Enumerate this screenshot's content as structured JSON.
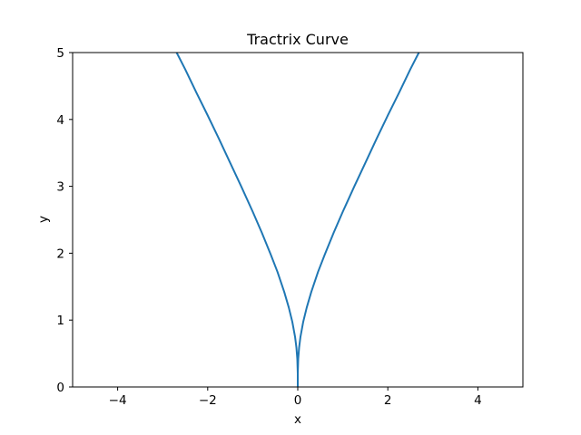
{
  "chart_data": {
    "type": "line",
    "title": "Tractrix Curve",
    "xlabel": "x",
    "ylabel": "y",
    "xlim": [
      -5,
      5
    ],
    "ylim": [
      0,
      5
    ],
    "xticks": [
      -4,
      -2,
      0,
      2,
      4
    ],
    "xtick_labels": [
      "−4",
      "−2",
      "0",
      "2",
      "4"
    ],
    "yticks": [
      0,
      1,
      2,
      3,
      4,
      5
    ],
    "ytick_labels": [
      "0",
      "1",
      "2",
      "3",
      "4",
      "5"
    ],
    "grid": false,
    "line_color": "#1f77b4",
    "series": [
      {
        "x": [
          -2.69,
          -2.5,
          -2.25,
          -2.0,
          -1.75,
          -1.5,
          -1.25,
          -1.0,
          -0.8,
          -0.6,
          -0.45,
          -0.3,
          -0.2,
          -0.12,
          -0.06,
          -0.03,
          -0.01,
          0.0,
          0.0,
          0.01,
          0.03,
          0.06,
          0.12,
          0.2,
          0.3,
          0.45,
          0.6,
          0.8,
          1.0,
          1.25,
          1.5,
          1.75,
          2.0,
          2.25,
          2.5,
          2.69
        ],
        "y": [
          5.0,
          4.75,
          4.4,
          4.06,
          3.71,
          3.35,
          2.99,
          2.62,
          2.31,
          1.98,
          1.72,
          1.42,
          1.19,
          0.97,
          0.75,
          0.59,
          0.42,
          0.2,
          0.2,
          0.42,
          0.59,
          0.75,
          0.97,
          1.19,
          1.42,
          1.72,
          1.98,
          2.31,
          2.62,
          2.99,
          3.35,
          3.71,
          4.06,
          4.4,
          4.75,
          5.0
        ]
      },
      {
        "x": [
          0.0,
          0.0
        ],
        "y": [
          0.0,
          0.2
        ]
      }
    ]
  }
}
